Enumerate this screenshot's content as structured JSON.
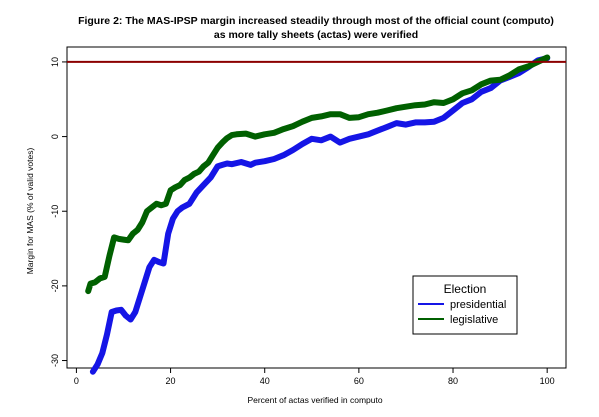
{
  "chart_data": {
    "type": "line",
    "title_line1": "Figure 2: The MAS-IPSP margin increased steadily through most of the official count (computo)",
    "title_line2": "as more tally sheets (actas) were verified",
    "xlabel": "Percent of actas verified in computo",
    "ylabel": "Margin for MAS (% of valid votes)",
    "xlim": [
      -2,
      104
    ],
    "ylim": [
      -31,
      12
    ],
    "x_ticks": [
      0,
      20,
      40,
      60,
      80,
      100
    ],
    "y_ticks": [
      -30,
      -20,
      -10,
      0,
      10
    ],
    "reference_line": {
      "y": 10,
      "color": "#8b0000"
    },
    "grid": false,
    "legend": {
      "title": "Election",
      "placement": "bottom-right"
    },
    "series": [
      {
        "name": "presidential",
        "color": "#1515e6",
        "x": [
          3.5,
          4.5,
          5.5,
          6.5,
          7.5,
          8.5,
          9.5,
          10.5,
          11.5,
          12.5,
          13.5,
          14.5,
          15.5,
          16.5,
          17.5,
          18.5,
          19.5,
          20.5,
          21.5,
          22.5,
          24,
          25.5,
          27,
          28.5,
          30,
          31,
          32,
          33,
          35,
          37,
          38,
          40,
          42,
          44,
          46,
          48,
          50,
          52,
          54,
          56,
          58,
          60,
          62,
          64,
          66,
          68,
          70,
          72,
          74,
          76,
          78,
          80,
          82,
          84,
          86,
          88,
          90,
          92,
          94,
          96,
          98,
          100
        ],
        "y": [
          -31.5,
          -30.5,
          -29,
          -26.5,
          -23.5,
          -23.3,
          -23.2,
          -24,
          -24.5,
          -23.5,
          -21.5,
          -19.5,
          -17.5,
          -16.5,
          -16.8,
          -17,
          -13,
          -11,
          -10,
          -9.5,
          -9,
          -7.5,
          -6.5,
          -5.5,
          -4,
          -3.8,
          -3.6,
          -3.7,
          -3.4,
          -3.8,
          -3.5,
          -3.3,
          -3,
          -2.5,
          -1.8,
          -1,
          -0.3,
          -0.5,
          0,
          -0.8,
          -0.3,
          0,
          0.3,
          0.8,
          1.3,
          1.8,
          1.6,
          1.9,
          1.9,
          2,
          2.5,
          3.5,
          4.5,
          5,
          6,
          6.5,
          7.5,
          8,
          8.5,
          9.3,
          10.2,
          10.5
        ]
      },
      {
        "name": "legislative",
        "color": "#006000",
        "x": [
          2.5,
          3,
          4,
          5,
          6,
          7,
          8,
          9,
          10,
          11,
          12,
          13,
          14,
          15,
          16,
          17,
          18,
          19,
          20,
          21,
          22,
          23,
          24,
          25,
          26,
          27,
          28,
          29,
          30,
          31,
          32,
          33,
          34,
          36,
          38,
          40,
          42,
          44,
          46,
          48,
          50,
          52,
          54,
          56,
          58,
          60,
          62,
          64,
          66,
          68,
          70,
          72,
          74,
          76,
          78,
          80,
          82,
          84,
          86,
          88,
          90,
          92,
          94,
          96,
          98,
          100
        ],
        "y": [
          -20.7,
          -19.7,
          -19.5,
          -19,
          -18.8,
          -16,
          -13.5,
          -13.7,
          -13.8,
          -13.9,
          -13,
          -12.5,
          -11.5,
          -10,
          -9.5,
          -9,
          -9.2,
          -9,
          -7.2,
          -6.8,
          -6.5,
          -5.8,
          -5.5,
          -5,
          -4.7,
          -4,
          -3.5,
          -2.5,
          -1.5,
          -0.8,
          -0.2,
          0.2,
          0.3,
          0.4,
          0,
          0.3,
          0.5,
          1,
          1.4,
          2,
          2.5,
          2.7,
          3,
          3,
          2.5,
          2.6,
          3,
          3.2,
          3.5,
          3.8,
          4,
          4.2,
          4.3,
          4.6,
          4.5,
          5,
          5.8,
          6.2,
          7,
          7.5,
          7.6,
          8.2,
          9,
          9.4,
          10,
          10.6
        ]
      }
    ]
  }
}
